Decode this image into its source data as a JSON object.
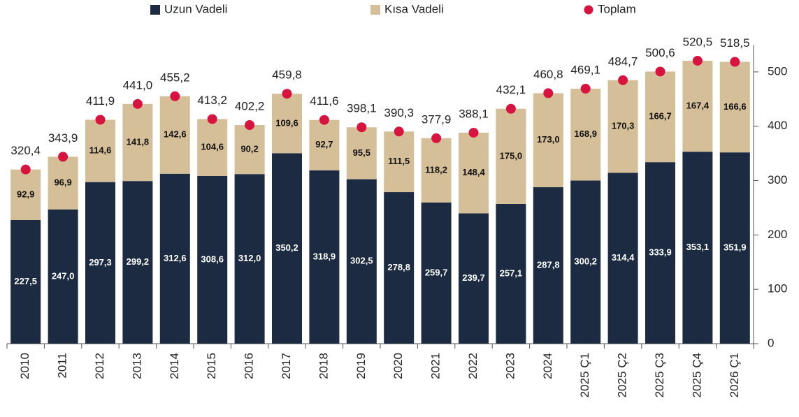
{
  "chart_data": {
    "type": "stacked_bar",
    "categories": [
      "2010",
      "2011",
      "2012",
      "2013",
      "2014",
      "2015",
      "2016",
      "2017",
      "2018",
      "2019",
      "2020",
      "2021",
      "2022",
      "2023",
      "2024",
      "2025 Ç1",
      "2025 Ç2",
      "2025 Ç3",
      "2025 Ç4",
      "2026 Ç1"
    ],
    "series": [
      {
        "name": "Uzun Vadeli",
        "color": "#1c2b42",
        "values": [
          227.5,
          247.0,
          297.3,
          299.2,
          312.6,
          308.6,
          312.0,
          350.2,
          318.9,
          302.5,
          278.8,
          259.7,
          239.7,
          257.1,
          287.8,
          300.2,
          314.4,
          333.9,
          353.1,
          351.9
        ],
        "value_labels": [
          "227,5",
          "247,0",
          "297,3",
          "299,2",
          "312,6",
          "308,6",
          "312,0",
          "350,2",
          "318,9",
          "302,5",
          "278,8",
          "259,7",
          "239,7",
          "257,1",
          "287,8",
          "300,2",
          "314,4",
          "333,9",
          "353,1",
          "351,9"
        ]
      },
      {
        "name": "Kısa Vadeli",
        "color": "#d5bf99",
        "values": [
          92.9,
          96.9,
          114.6,
          141.8,
          142.6,
          104.6,
          90.2,
          109.6,
          92.7,
          95.5,
          111.5,
          118.2,
          148.4,
          175.0,
          173.0,
          168.9,
          170.3,
          166.7,
          167.4,
          166.6
        ],
        "value_labels": [
          "92,9",
          "96,9",
          "114,6",
          "141,8",
          "142,6",
          "104,6",
          "90,2",
          "109,6",
          "92,7",
          "95,5",
          "111,5",
          "118,2",
          "148,4",
          "175,0",
          "173,0",
          "168,9",
          "170,3",
          "166,7",
          "167,4",
          "166,6"
        ]
      },
      {
        "name": "Toplam",
        "color": "#d7143f",
        "type": "dot",
        "values": [
          320.4,
          343.9,
          411.9,
          441.0,
          455.2,
          413.2,
          402.2,
          459.8,
          411.6,
          398.1,
          390.3,
          377.9,
          388.1,
          432.1,
          460.8,
          469.1,
          484.7,
          500.6,
          520.5,
          518.5
        ],
        "value_labels": [
          "320,4",
          "343,9",
          "411,9",
          "441,0",
          "455,2",
          "413,2",
          "402,2",
          "459,8",
          "411,6",
          "398,1",
          "390,3",
          "377,9",
          "388,1",
          "432,1",
          "460,8",
          "469,1",
          "484,7",
          "500,6",
          "520,5",
          "518,5"
        ]
      }
    ],
    "ylim": [
      0,
      550
    ],
    "yticks": [
      0,
      100,
      200,
      300,
      400,
      500
    ],
    "legend": "top"
  }
}
